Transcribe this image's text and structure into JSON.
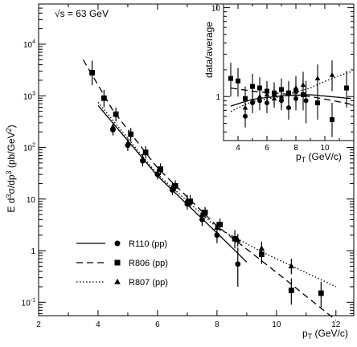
{
  "chart_data": [
    {
      "type": "scatter",
      "annotation": "√s = 63 GeV",
      "xlabel": "p",
      "xlabel_sub": "T",
      "xlabel_unit": "(GeV/c)",
      "ylabel": "E d³σ/dp³ (pb/GeV²)",
      "xlim": [
        2,
        12.6
      ],
      "ylim": [
        0.055,
        60000
      ],
      "yscale": "log",
      "xticks": [
        2,
        4,
        6,
        8,
        10,
        12
      ],
      "yticks": [
        {
          "v": 10000,
          "base": "10",
          "exp": "4"
        },
        {
          "v": 1000,
          "base": "10",
          "exp": "3"
        },
        {
          "v": 100,
          "base": "10",
          "exp": "2"
        },
        {
          "v": 10,
          "base": "10",
          "exp": ""
        },
        {
          "v": 1,
          "base": "1",
          "exp": ""
        },
        {
          "v": 0.1,
          "base": "10",
          "exp": "-1"
        }
      ],
      "legend": [
        {
          "line": "solid",
          "marker": "circle",
          "label": "R110 (pp)"
        },
        {
          "line": "dashed",
          "marker": "square",
          "label": "R806 (pp)"
        },
        {
          "line": "dotted",
          "marker": "triangle",
          "label": "R807 (pp)"
        }
      ],
      "series": [
        {
          "name": "R110 (pp)",
          "marker": "circle",
          "line": "solid",
          "x": [
            4.5,
            5.0,
            5.5,
            6.0,
            6.5,
            7.0,
            7.5,
            8.0,
            8.7
          ],
          "y": [
            220,
            110,
            55,
            30,
            15,
            8.0,
            4.0,
            2.0,
            0.55
          ],
          "err_low": [
            50,
            25,
            12,
            6,
            3,
            1.8,
            1.0,
            0.6,
            0.35
          ],
          "err_high": [
            60,
            30,
            15,
            7,
            4,
            2.2,
            1.3,
            0.8,
            0.6
          ]
        },
        {
          "name": "R806 (pp)",
          "marker": "square",
          "line": "dashed",
          "x": [
            3.8,
            4.2,
            4.6,
            5.1,
            5.6,
            6.1,
            6.6,
            7.1,
            7.6,
            8.1,
            8.6,
            9.5,
            10.5,
            11.5
          ],
          "y": [
            2800,
            900,
            440,
            180,
            80,
            38,
            18,
            9.0,
            5.5,
            3.2,
            1.7,
            0.85,
            0.17,
            0.15
          ],
          "err_low": [
            1200,
            300,
            120,
            50,
            20,
            9,
            4,
            2,
            1.2,
            0.8,
            0.6,
            0.3,
            0.08,
            0.07
          ],
          "err_high": [
            2000,
            400,
            150,
            60,
            25,
            11,
            5,
            3,
            1.5,
            1.0,
            0.8,
            0.4,
            0.12,
            0.1
          ]
        },
        {
          "name": "R807 (pp)",
          "marker": "triangle",
          "line": "dotted",
          "x": [
            4.5,
            5.0,
            5.5,
            6.0,
            6.5,
            7.0,
            7.5,
            8.0,
            8.7,
            9.5,
            10.5
          ],
          "y": [
            250,
            120,
            60,
            32,
            17,
            9.5,
            5.0,
            2.8,
            1.6,
            1.1,
            0.5
          ],
          "err_low": [
            50,
            25,
            12,
            6,
            3,
            2,
            1.0,
            0.6,
            0.4,
            0.3,
            0.15
          ],
          "err_high": [
            60,
            30,
            15,
            7,
            4,
            2.5,
            1.2,
            0.8,
            0.5,
            0.4,
            0.2
          ]
        }
      ]
    },
    {
      "type": "scatter",
      "ylabel": "data/average",
      "xlabel": "p",
      "xlabel_sub": "T",
      "xlabel_unit": "(GeV/c)",
      "xlim": [
        3,
        12
      ],
      "ylim": [
        0.32,
        11
      ],
      "yscale": "log",
      "xticks": [
        4,
        6,
        8,
        10
      ],
      "yticks": [
        {
          "v": 10,
          "base": "10",
          "exp": ""
        },
        {
          "v": 1,
          "base": "1",
          "exp": ""
        }
      ],
      "series": [
        {
          "name": "R110 (pp)",
          "marker": "circle",
          "line": "solid",
          "x": [
            4.5,
            5.0,
            5.5,
            6.0,
            6.5,
            7.0,
            7.5,
            8.0,
            8.7
          ],
          "y": [
            0.6,
            0.85,
            0.9,
            0.85,
            1.05,
            0.9,
            0.75,
            0.95,
            0.9
          ],
          "err_low": [
            0.15,
            0.2,
            0.2,
            0.2,
            0.25,
            0.2,
            0.2,
            0.25,
            0.4
          ],
          "err_high": [
            0.2,
            0.3,
            0.3,
            0.3,
            0.35,
            0.3,
            0.3,
            0.35,
            0.6
          ],
          "curve_x": [
            3.5,
            5,
            7,
            9,
            11.8
          ],
          "curve_y": [
            0.78,
            0.93,
            1.02,
            1.05,
            0.95
          ]
        },
        {
          "name": "R806 (pp)",
          "marker": "square",
          "line": "dashed",
          "x": [
            3.5,
            4.0,
            4.5,
            5.0,
            5.5,
            6.0,
            6.5,
            7.0,
            7.5,
            8.0,
            8.5,
            9.5,
            10.5,
            11.5
          ],
          "y": [
            1.6,
            1.5,
            0.95,
            1.3,
            1.25,
            1.15,
            1.1,
            1.2,
            1.1,
            1.15,
            1.05,
            0.85,
            0.55,
            1.25
          ],
          "err_low": [
            0.6,
            0.5,
            0.3,
            0.4,
            0.35,
            0.3,
            0.3,
            0.3,
            0.3,
            0.3,
            0.35,
            0.3,
            0.2,
            0.5
          ],
          "err_high": [
            0.8,
            0.6,
            0.35,
            0.5,
            0.4,
            0.35,
            0.35,
            0.4,
            0.35,
            0.35,
            0.45,
            0.4,
            0.3,
            0.7
          ],
          "curve_x": [
            3.5,
            5,
            7,
            9,
            11.8
          ],
          "curve_y": [
            1.25,
            1.15,
            1.08,
            1.0,
            0.82
          ]
        },
        {
          "name": "R807 (pp)",
          "marker": "triangle",
          "line": "dotted",
          "x": [
            4.5,
            5.0,
            5.5,
            6.0,
            6.5,
            7.0,
            7.5,
            8.0,
            8.5,
            9.5,
            10.5
          ],
          "y": [
            0.75,
            0.9,
            1.0,
            1.05,
            0.95,
            1.0,
            1.1,
            1.25,
            1.35,
            1.6,
            1.75
          ],
          "err_low": [
            0.15,
            0.2,
            0.2,
            0.25,
            0.2,
            0.25,
            0.3,
            0.35,
            0.4,
            0.5,
            0.6
          ],
          "err_high": [
            0.2,
            0.25,
            0.3,
            0.35,
            0.3,
            0.35,
            0.4,
            0.45,
            0.55,
            0.7,
            0.8
          ],
          "curve_x": [
            3.5,
            5,
            7,
            9,
            11.8
          ],
          "curve_y": [
            0.68,
            0.88,
            1.0,
            1.25,
            1.9
          ]
        }
      ]
    }
  ]
}
